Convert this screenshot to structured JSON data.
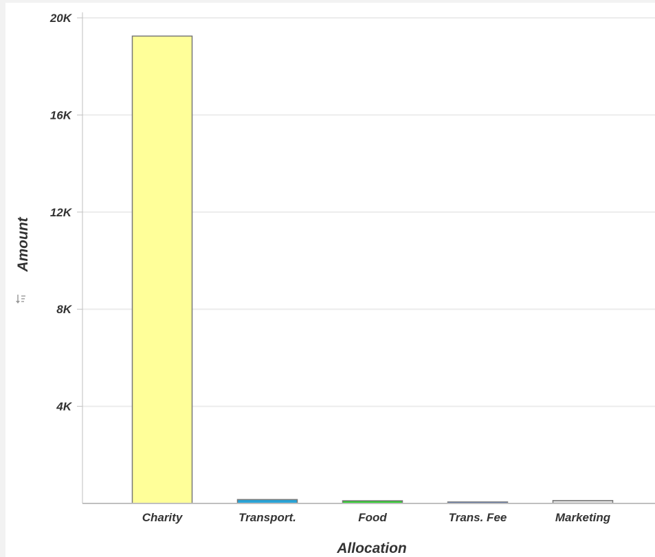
{
  "chart_data": {
    "type": "bar",
    "categories": [
      "Charity",
      "Transport.",
      "Food",
      "Trans. Fee",
      "Marketing"
    ],
    "values": [
      19250,
      160,
      110,
      60,
      120
    ],
    "xlabel": "Allocation",
    "ylabel": "Amount",
    "ylim": [
      0,
      20000
    ],
    "yticks": [
      4000,
      8000,
      12000,
      16000,
      20000
    ],
    "ytick_labels": [
      "4K",
      "8K",
      "12K",
      "16K",
      "20K"
    ],
    "grid": true,
    "legend": "none",
    "colors": [
      "#ffff99",
      "#2aa3d6",
      "#33cc33",
      "#3a6fdc",
      "#dddddd"
    ]
  },
  "ylabel_icon": "sort-icon"
}
